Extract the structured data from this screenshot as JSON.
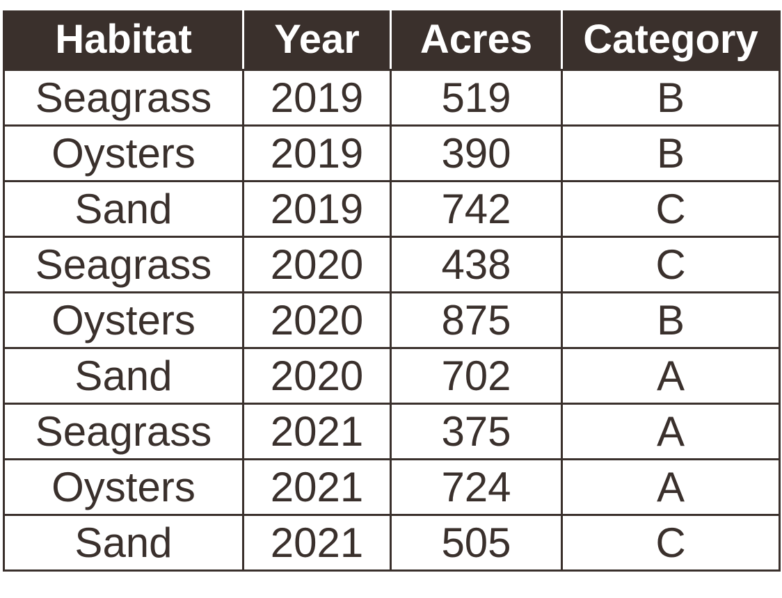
{
  "table": {
    "headers": [
      "Habitat",
      "Year",
      "Acres",
      "Category"
    ],
    "rows": [
      [
        "Seagrass",
        "2019",
        "519",
        "B"
      ],
      [
        "Oysters",
        "2019",
        "390",
        "B"
      ],
      [
        "Sand",
        "2019",
        "742",
        "C"
      ],
      [
        "Seagrass",
        "2020",
        "438",
        "C"
      ],
      [
        "Oysters",
        "2020",
        "875",
        "B"
      ],
      [
        "Sand",
        "2020",
        "702",
        "A"
      ],
      [
        "Seagrass",
        "2021",
        "375",
        "A"
      ],
      [
        "Oysters",
        "2021",
        "724",
        "A"
      ],
      [
        "Sand",
        "2021",
        "505",
        "C"
      ]
    ]
  },
  "colors": {
    "header_background": "#3a302c",
    "header_text": "#ffffff",
    "cell_text": "#3a302c",
    "border": "#3a302c"
  }
}
